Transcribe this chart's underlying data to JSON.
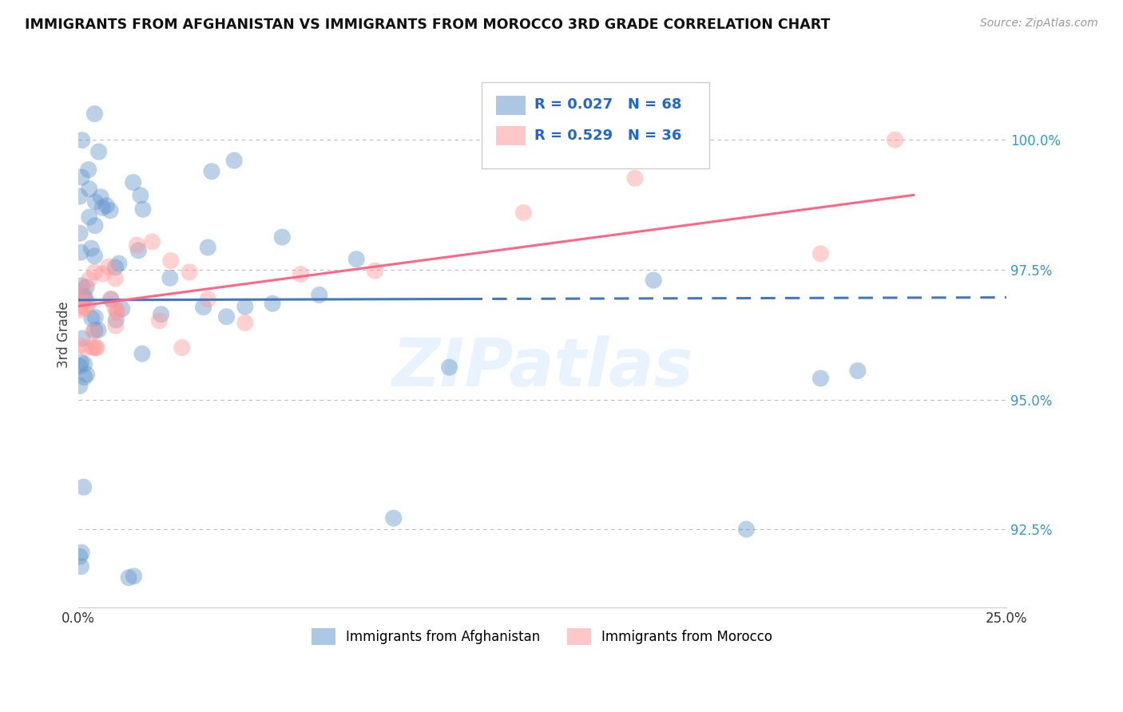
{
  "title": "IMMIGRANTS FROM AFGHANISTAN VS IMMIGRANTS FROM MOROCCO 3RD GRADE CORRELATION CHART",
  "source": "Source: ZipAtlas.com",
  "ylabel": "3rd Grade",
  "y_ticks": [
    92.5,
    95.0,
    97.5,
    100.0
  ],
  "y_tick_labels": [
    "92.5%",
    "95.0%",
    "97.5%",
    "100.0%"
  ],
  "xlim": [
    0.0,
    25.0
  ],
  "ylim": [
    91.0,
    101.5
  ],
  "afghanistan_color": "#6699CC",
  "morocco_color": "#FF9999",
  "afghanistan_R": 0.027,
  "afghanistan_N": 68,
  "morocco_R": 0.529,
  "morocco_N": 36,
  "watermark": "ZIPatlas",
  "background_color": "#FFFFFF",
  "grid_color": "#BBBBBB",
  "trend_line_afghanistan_color": "#4477BB",
  "trend_line_morocco_color": "#FF6688"
}
